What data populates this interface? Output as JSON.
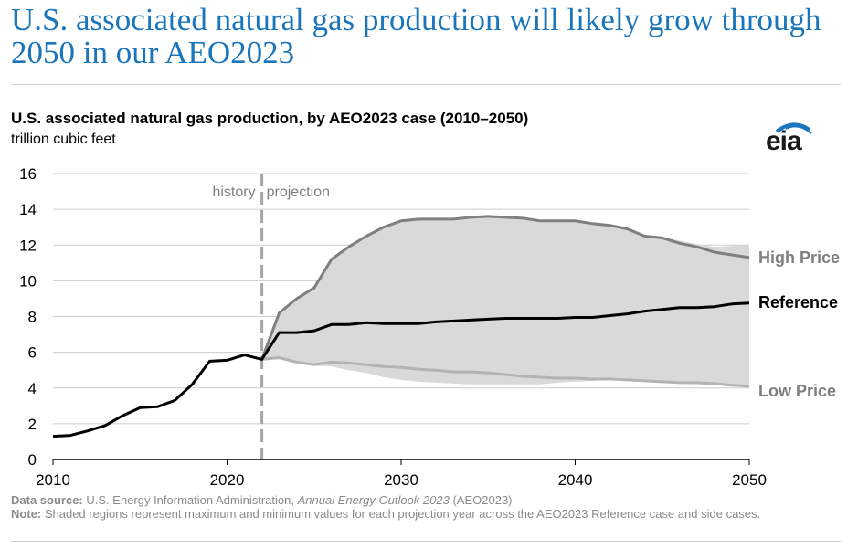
{
  "headline": "U.S. associated natural gas production will likely grow through 2050 in our AEO2023",
  "logo_text": "eia",
  "footnote": {
    "source_label": "Data source:",
    "source_text_pre": "U.S. Energy Information Administration,",
    "source_italic": "Annual Energy Outlook 2023",
    "source_text_post": "(AEO2023)",
    "note_label": "Note:",
    "note_text": "Shaded regions represent maximum and minimum values for each projection year across the AEO2023 Reference case and side cases."
  },
  "chart_data": {
    "type": "line",
    "title": "U.S. associated natural gas production, by AEO2023 case (2010–2050)",
    "subtitle": "trillion cubic feet",
    "xlim": [
      2010,
      2050
    ],
    "ylim": [
      0,
      16
    ],
    "x_ticks": [
      2010,
      2020,
      2030,
      2040,
      2050
    ],
    "y_ticks": [
      0,
      2,
      4,
      6,
      8,
      10,
      12,
      14,
      16
    ],
    "grid": "horizontal",
    "divider": {
      "x": 2022,
      "left_label": "history",
      "right_label": "projection"
    },
    "colors": {
      "reference": "#000000",
      "high": "#7f7f7f",
      "low": "#b3b3b3",
      "band": "#d9d9d9",
      "grid": "#cccccc",
      "divider": "#a6a6a6"
    },
    "series": [
      {
        "name": "Reference",
        "key": "reference",
        "x": [
          2010,
          2011,
          2012,
          2013,
          2014,
          2015,
          2016,
          2017,
          2018,
          2019,
          2020,
          2021,
          2022,
          2023,
          2024,
          2025,
          2026,
          2027,
          2028,
          2029,
          2030,
          2031,
          2032,
          2033,
          2034,
          2035,
          2036,
          2037,
          2038,
          2039,
          2040,
          2041,
          2042,
          2043,
          2044,
          2045,
          2046,
          2047,
          2048,
          2049,
          2050
        ],
        "values": [
          1.3,
          1.35,
          1.6,
          1.9,
          2.45,
          2.9,
          2.95,
          3.3,
          4.2,
          5.5,
          5.55,
          5.85,
          5.6,
          7.1,
          7.1,
          7.2,
          7.55,
          7.55,
          7.65,
          7.6,
          7.6,
          7.6,
          7.7,
          7.75,
          7.8,
          7.85,
          7.9,
          7.9,
          7.9,
          7.9,
          7.95,
          7.95,
          8.05,
          8.15,
          8.3,
          8.4,
          8.5,
          8.5,
          8.55,
          8.7,
          8.75
        ]
      },
      {
        "name": "High Price",
        "key": "high",
        "x": [
          2022,
          2023,
          2024,
          2025,
          2026,
          2027,
          2028,
          2029,
          2030,
          2031,
          2032,
          2033,
          2034,
          2035,
          2036,
          2037,
          2038,
          2039,
          2040,
          2041,
          2042,
          2043,
          2044,
          2045,
          2046,
          2047,
          2048,
          2049,
          2050
        ],
        "values": [
          5.6,
          8.2,
          9.0,
          9.6,
          11.2,
          11.9,
          12.5,
          13.0,
          13.35,
          13.45,
          13.45,
          13.45,
          13.55,
          13.6,
          13.55,
          13.5,
          13.35,
          13.35,
          13.35,
          13.2,
          13.1,
          12.9,
          12.5,
          12.4,
          12.1,
          11.9,
          11.6,
          11.45,
          11.3
        ]
      },
      {
        "name": "Low Price",
        "key": "low",
        "x": [
          2022,
          2023,
          2024,
          2025,
          2026,
          2027,
          2028,
          2029,
          2030,
          2031,
          2032,
          2033,
          2034,
          2035,
          2036,
          2037,
          2038,
          2039,
          2040,
          2041,
          2042,
          2043,
          2044,
          2045,
          2046,
          2047,
          2048,
          2049,
          2050
        ],
        "values": [
          5.6,
          5.7,
          5.45,
          5.3,
          5.45,
          5.4,
          5.3,
          5.2,
          5.15,
          5.05,
          5.0,
          4.9,
          4.9,
          4.85,
          4.75,
          4.65,
          4.6,
          4.55,
          4.55,
          4.5,
          4.5,
          4.45,
          4.4,
          4.35,
          4.3,
          4.3,
          4.25,
          4.15,
          4.1
        ]
      }
    ],
    "band": {
      "name": "range across cases",
      "x": [
        2022,
        2023,
        2024,
        2025,
        2026,
        2027,
        2028,
        2029,
        2030,
        2031,
        2032,
        2033,
        2034,
        2035,
        2036,
        2037,
        2038,
        2039,
        2040,
        2041,
        2042,
        2043,
        2044,
        2045,
        2046,
        2047,
        2048,
        2049,
        2050
      ],
      "upper": [
        5.6,
        8.2,
        9.0,
        9.6,
        11.2,
        11.9,
        12.5,
        13.0,
        13.35,
        13.45,
        13.45,
        13.45,
        13.55,
        13.6,
        13.55,
        13.5,
        13.35,
        13.35,
        13.35,
        13.2,
        13.1,
        12.9,
        12.55,
        12.45,
        12.25,
        12.05,
        11.9,
        11.95,
        12.0
      ],
      "lower": [
        5.6,
        5.6,
        5.4,
        5.25,
        5.2,
        5.0,
        4.85,
        4.6,
        4.45,
        4.35,
        4.3,
        4.25,
        4.2,
        4.2,
        4.2,
        4.2,
        4.2,
        4.3,
        4.35,
        4.4,
        4.45,
        4.4,
        4.35,
        4.3,
        4.25,
        4.2,
        4.15,
        4.1,
        4.05
      ]
    }
  }
}
